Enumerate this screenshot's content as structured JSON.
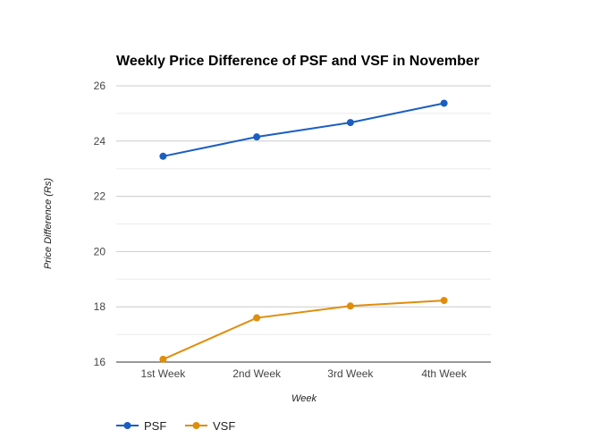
{
  "chart_data": {
    "type": "line",
    "title": "Weekly Price Difference of PSF and VSF in November",
    "xlabel": "Week",
    "ylabel": "Price Difference (Rs)",
    "categories": [
      "1st Week",
      "2nd Week",
      "3rd Week",
      "4th Week"
    ],
    "ylim": [
      16,
      26
    ],
    "yticks": [
      16,
      18,
      20,
      22,
      24,
      26
    ],
    "grid": true,
    "legend_position": "bottom-left",
    "series": [
      {
        "name": "PSF",
        "color": "#1a5ec2",
        "values": [
          23.45,
          24.15,
          24.67,
          25.37
        ]
      },
      {
        "name": "VSF",
        "color": "#e08d0b",
        "values": [
          16.1,
          17.6,
          18.03,
          18.23
        ]
      }
    ]
  }
}
